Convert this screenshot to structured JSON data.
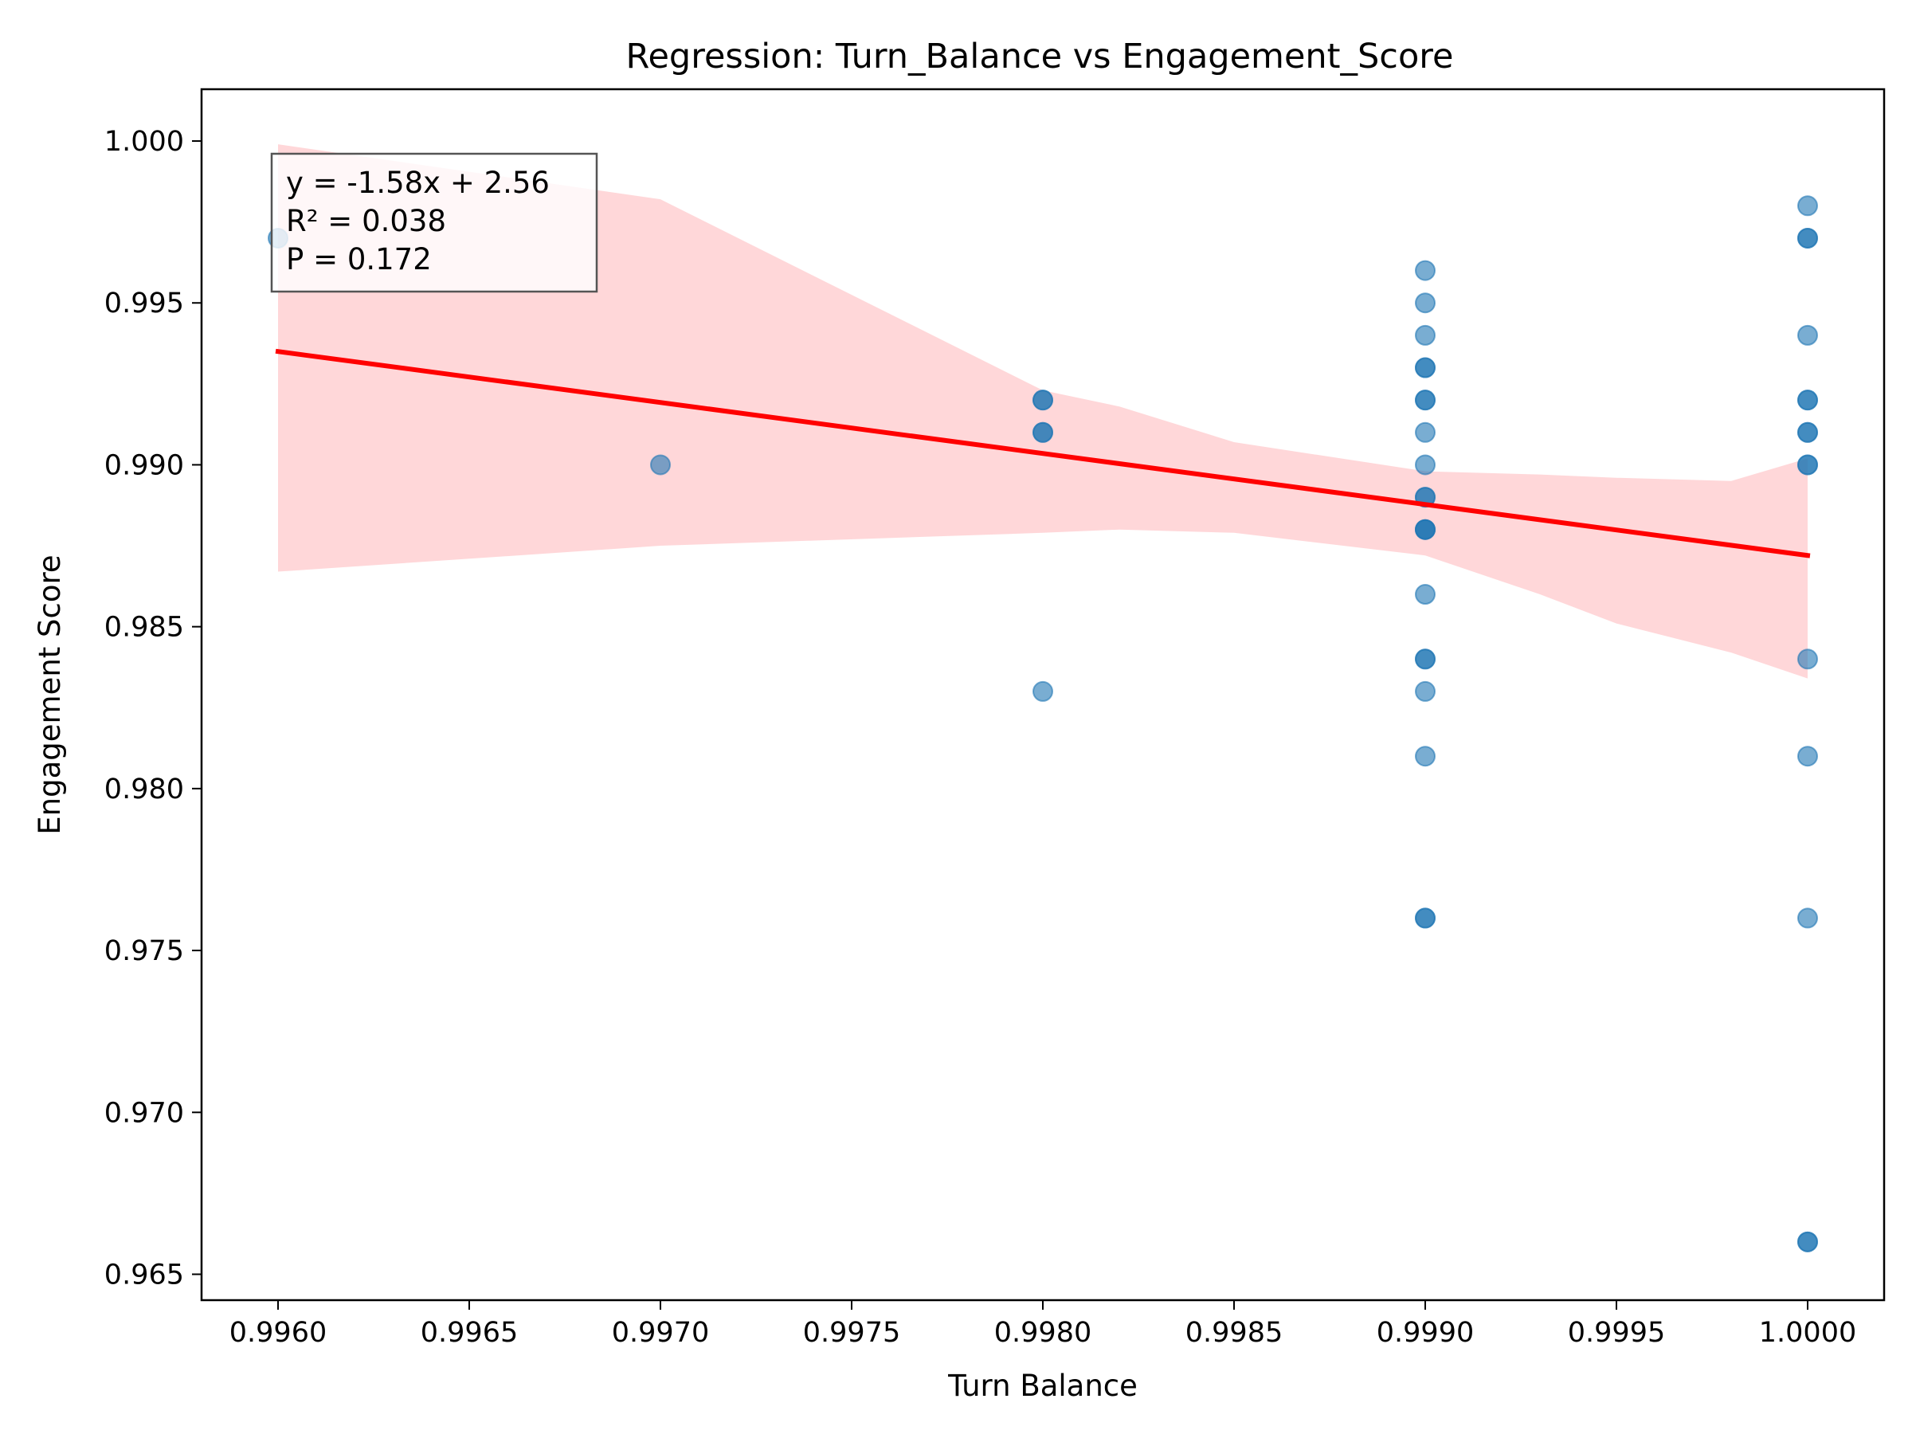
{
  "chart_data": {
    "type": "scatter",
    "title": "Regression: Turn_Balance vs Engagement_Score",
    "xlabel": "Turn Balance",
    "ylabel": "Engagement Score",
    "xlim": [
      0.9958,
      1.0002
    ],
    "ylim": [
      0.9642,
      1.0016
    ],
    "x_ticks": [
      0.996,
      0.9965,
      0.997,
      0.9975,
      0.998,
      0.9985,
      0.999,
      0.9995,
      1.0
    ],
    "x_tick_labels": [
      "0.9960",
      "0.9965",
      "0.9970",
      "0.9975",
      "0.9980",
      "0.9985",
      "0.9990",
      "0.9995",
      "1.0000"
    ],
    "y_ticks": [
      0.965,
      0.97,
      0.975,
      0.98,
      0.985,
      0.99,
      0.995,
      1.0
    ],
    "y_tick_labels": [
      "0.965",
      "0.970",
      "0.975",
      "0.980",
      "0.985",
      "0.990",
      "0.995",
      "1.000"
    ],
    "grid": false,
    "series": [
      {
        "kind": "scatter",
        "color": "#1f77b4",
        "x": [
          0.996,
          0.997,
          0.998,
          0.998,
          0.998,
          0.998,
          0.998,
          0.999,
          0.999,
          0.999,
          0.999,
          0.999,
          0.999,
          0.999,
          0.999,
          0.999,
          0.999,
          0.999,
          0.999,
          0.999,
          0.999,
          0.999,
          0.999,
          0.999,
          0.999,
          0.999,
          0.999,
          0.999,
          1.0,
          1.0,
          1.0,
          1.0,
          1.0,
          1.0,
          1.0,
          1.0,
          1.0,
          1.0,
          1.0,
          1.0,
          1.0,
          1.0,
          1.0
        ],
        "y": [
          0.997,
          0.99,
          0.992,
          0.992,
          0.991,
          0.991,
          0.983,
          0.996,
          0.995,
          0.994,
          0.993,
          0.993,
          0.992,
          0.992,
          0.991,
          0.99,
          0.989,
          0.989,
          0.988,
          0.988,
          0.988,
          0.986,
          0.984,
          0.984,
          0.983,
          0.981,
          0.976,
          0.976,
          0.998,
          0.997,
          0.997,
          0.994,
          0.992,
          0.992,
          0.991,
          0.991,
          0.99,
          0.99,
          0.984,
          0.981,
          0.976,
          0.966,
          0.966
        ]
      },
      {
        "kind": "regression-line",
        "color": "#ff0000",
        "x": [
          0.996,
          1.0
        ],
        "y": [
          0.9935,
          0.9872
        ]
      },
      {
        "kind": "confidence-band",
        "color": "#ffb6b9",
        "x": [
          0.996,
          0.997,
          0.998,
          0.9982,
          0.9985,
          0.999,
          0.9993,
          0.9995,
          0.9998,
          1.0
        ],
        "upper": [
          0.9999,
          0.9982,
          0.9923,
          0.9918,
          0.9907,
          0.9898,
          0.9897,
          0.9896,
          0.9895,
          0.9902
        ],
        "lower": [
          0.9867,
          0.9875,
          0.9879,
          0.988,
          0.9879,
          0.9872,
          0.986,
          0.9851,
          0.9842,
          0.9834
        ]
      }
    ],
    "annotation": {
      "lines": [
        "y = -1.58x + 2.56",
        "R² = 0.038",
        "P = 0.172"
      ],
      "placement": "top-left"
    }
  }
}
